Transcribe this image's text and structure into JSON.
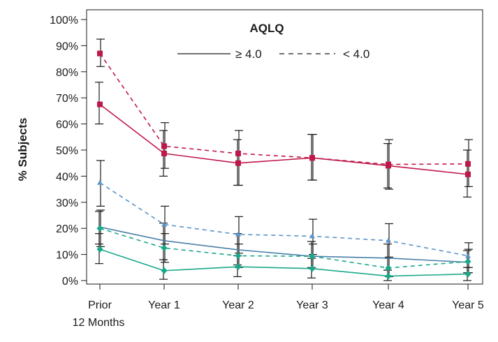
{
  "chart_data": {
    "type": "line",
    "title": "AQLQ",
    "ylabel": "% Subjects",
    "xlabel": "",
    "categories": [
      "Prior\n12 Months",
      "Year 1",
      "Year 2",
      "Year 3",
      "Year 4",
      "Year 5"
    ],
    "yticks": [
      "0%",
      "10%",
      "20%",
      "30%",
      "40%",
      "50%",
      "60%",
      "70%",
      "80%",
      "90%",
      "100%"
    ],
    "ylim": [
      0,
      100
    ],
    "grid": false,
    "legend": {
      "placement": "top-center",
      "entries": [
        {
          "label": "≥ 4.0",
          "style": "solid"
        },
        {
          "label": "< 4.0",
          "style": "dashed"
        }
      ]
    },
    "series": [
      {
        "group": "crimson",
        "style": "solid",
        "marker": "square",
        "color": "#c0174a",
        "values": [
          67.5,
          48.7,
          45.0,
          47.0,
          44.0,
          40.7
        ],
        "err_low": [
          60,
          40,
          36.5,
          38.5,
          35.5,
          32
        ],
        "err_high": [
          76,
          57.5,
          54,
          56,
          52.5,
          50
        ]
      },
      {
        "group": "crimson",
        "style": "dashed",
        "marker": "square",
        "color": "#c0174a",
        "values": [
          87.0,
          51.5,
          48.7,
          47.0,
          44.5,
          44.7
        ],
        "err_low": [
          82,
          43,
          36.5,
          38.5,
          35,
          36
        ],
        "err_high": [
          92.5,
          60.5,
          57.5,
          56,
          54,
          54
        ]
      },
      {
        "group": "blue",
        "style": "solid",
        "marker": "none",
        "color": "#4a80ab",
        "values": [
          20.5,
          15.3,
          11.8,
          9.3,
          8.6,
          7.0
        ],
        "err_low": [
          14,
          8,
          6,
          5,
          4,
          3
        ],
        "err_high": [
          26.5,
          22,
          18,
          15,
          14,
          11.5
        ]
      },
      {
        "group": "blue",
        "style": "dashed",
        "marker": "triangle",
        "color": "#5b93c8",
        "values": [
          37.5,
          21.5,
          17.7,
          17.0,
          15.3,
          9.5
        ],
        "err_low": [
          28.5,
          14,
          10.5,
          10,
          8.5,
          5
        ],
        "err_high": [
          46,
          28.5,
          24.5,
          23.5,
          21.8,
          14.5
        ]
      },
      {
        "group": "green",
        "style": "solid",
        "marker": "diamond",
        "color": "#1aa88a",
        "values": [
          12.0,
          3.8,
          5.3,
          4.6,
          1.7,
          2.5
        ],
        "err_low": [
          6.5,
          0.5,
          1.5,
          1,
          0,
          0
        ],
        "err_high": [
          18,
          8,
          9.5,
          8.5,
          4,
          5
        ]
      },
      {
        "group": "green",
        "style": "dashed",
        "marker": "diamond",
        "color": "#1aa88a",
        "values": [
          20.0,
          12.5,
          9.5,
          9.3,
          4.8,
          7.3
        ],
        "err_low": [
          13,
          7,
          5,
          4.5,
          1.5,
          3
        ],
        "err_high": [
          27,
          18,
          14,
          14,
          9,
          12
        ]
      }
    ]
  }
}
